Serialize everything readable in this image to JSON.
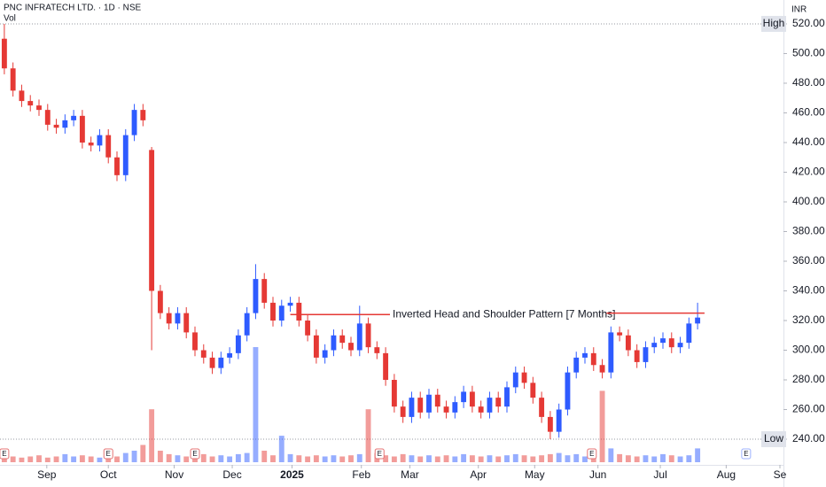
{
  "chart_data": {
    "type": "candlestick",
    "title": "PNC INFRATECH LTD. · 1D · NSE",
    "volume_label": "Vol",
    "currency": "INR",
    "up_color": "#2e5bff",
    "down_color": "#e53935",
    "xlim": [
      0,
      90
    ],
    "xticks": [
      {
        "value": 5.4,
        "label": "Sep"
      },
      {
        "value": 12.5,
        "label": "Oct"
      },
      {
        "value": 20.1,
        "label": "Nov"
      },
      {
        "value": 26.8,
        "label": "Dec"
      },
      {
        "value": 33.7,
        "label": "2025"
      },
      {
        "value": 41.7,
        "label": "Feb"
      },
      {
        "value": 47.3,
        "label": "Mar"
      },
      {
        "value": 55.2,
        "label": "Apr"
      },
      {
        "value": 61.7,
        "label": "May"
      },
      {
        "value": 69.0,
        "label": "Jun"
      },
      {
        "value": 76.2,
        "label": "Jul"
      },
      {
        "value": 83.8,
        "label": "Aug"
      },
      {
        "value": 90,
        "label": "Se"
      }
    ],
    "ylim": [
      222.7,
      536.1
    ],
    "yticks": [
      {
        "value": 240,
        "label": "240.00"
      },
      {
        "value": 260,
        "label": "260.00"
      },
      {
        "value": 280,
        "label": "280.00"
      },
      {
        "value": 300,
        "label": "300.00"
      },
      {
        "value": 320,
        "label": "320.00"
      },
      {
        "value": 340,
        "label": "340.00"
      },
      {
        "value": 360,
        "label": "360.00"
      },
      {
        "value": 380,
        "label": "380.00"
      },
      {
        "value": 400,
        "label": "400.00"
      },
      {
        "value": 420,
        "label": "420.00"
      },
      {
        "value": 440,
        "label": "440.00"
      },
      {
        "value": 460,
        "label": "460.00"
      },
      {
        "value": 480,
        "label": "480.00"
      },
      {
        "value": 500,
        "label": "500.00"
      },
      {
        "value": 520,
        "label": "520.00"
      }
    ],
    "grid": false,
    "high": {
      "label": "High",
      "value": 520
    },
    "low": {
      "label": "Low",
      "value": 240
    },
    "open": [
      510,
      490,
      475,
      468,
      465,
      462,
      452,
      450,
      455,
      458,
      440,
      438,
      445,
      430,
      418,
      445,
      462,
      435,
      340,
      325,
      318,
      325,
      312,
      300,
      295,
      288,
      295,
      298,
      310,
      325,
      348,
      332,
      320,
      330,
      332,
      320,
      310,
      295,
      300,
      310,
      305,
      300,
      318,
      302,
      298,
      280,
      262,
      255,
      268,
      258,
      270,
      262,
      258,
      265,
      272,
      262,
      258,
      268,
      262,
      275,
      285,
      278,
      268,
      255,
      245,
      260,
      285,
      295,
      298,
      290,
      285,
      312,
      310,
      300,
      292,
      302,
      305,
      308,
      302,
      305,
      318
    ],
    "high_values": [
      520,
      494,
      479,
      472,
      469,
      466,
      456,
      459,
      462,
      462,
      444,
      449,
      449,
      434,
      449,
      466,
      466,
      437,
      344,
      329,
      329,
      329,
      316,
      304,
      299,
      299,
      302,
      314,
      329,
      358,
      352,
      336,
      334,
      336,
      336,
      324,
      314,
      304,
      314,
      314,
      309,
      330,
      322,
      306,
      302,
      284,
      266,
      272,
      272,
      274,
      274,
      266,
      269,
      276,
      276,
      266,
      272,
      272,
      279,
      289,
      289,
      282,
      272,
      259,
      264,
      289,
      299,
      302,
      302,
      294,
      316,
      316,
      314,
      304,
      306,
      309,
      312,
      312,
      309,
      322,
      332
    ],
    "low_values": [
      486,
      471,
      464,
      461,
      458,
      448,
      446,
      446,
      451,
      436,
      434,
      434,
      426,
      414,
      414,
      441,
      451,
      300,
      321,
      314,
      314,
      308,
      296,
      291,
      284,
      284,
      291,
      294,
      306,
      321,
      328,
      316,
      316,
      326,
      316,
      306,
      291,
      291,
      296,
      301,
      296,
      296,
      298,
      294,
      276,
      258,
      251,
      251,
      254,
      254,
      258,
      254,
      254,
      261,
      258,
      254,
      254,
      258,
      258,
      271,
      274,
      264,
      251,
      240,
      241,
      256,
      281,
      291,
      286,
      281,
      281,
      306,
      296,
      288,
      288,
      298,
      301,
      298,
      298,
      301,
      314
    ],
    "close": [
      490,
      475,
      468,
      465,
      462,
      452,
      450,
      455,
      458,
      440,
      438,
      445,
      430,
      418,
      445,
      462,
      455,
      340,
      325,
      318,
      325,
      312,
      300,
      295,
      288,
      295,
      298,
      310,
      325,
      348,
      332,
      320,
      330,
      332,
      320,
      310,
      295,
      300,
      310,
      305,
      300,
      318,
      302,
      298,
      280,
      262,
      255,
      268,
      258,
      270,
      262,
      258,
      265,
      272,
      262,
      258,
      268,
      262,
      275,
      285,
      278,
      268,
      255,
      245,
      260,
      285,
      295,
      298,
      290,
      285,
      312,
      310,
      300,
      292,
      302,
      305,
      308,
      302,
      305,
      318,
      322
    ],
    "volume": [
      6,
      5,
      4,
      5,
      6,
      4,
      5,
      7,
      5,
      6,
      5,
      4,
      6,
      5,
      8,
      10,
      15,
      46,
      10,
      7,
      6,
      5,
      6,
      7,
      5,
      6,
      5,
      7,
      8,
      100,
      10,
      6,
      23,
      7,
      6,
      5,
      6,
      5,
      6,
      5,
      6,
      7,
      46,
      8,
      6,
      5,
      7,
      6,
      5,
      6,
      5,
      6,
      5,
      7,
      6,
      5,
      6,
      5,
      6,
      7,
      6,
      5,
      6,
      7,
      8,
      6,
      7,
      5,
      6,
      62,
      12,
      7,
      6,
      5,
      6,
      5,
      7,
      6,
      5,
      6,
      12
    ],
    "vlim": [
      0,
      100
    ],
    "annotations": [
      {
        "text": "Inverted Head and Shoulder Pattern [7 Months]",
        "value": 324,
        "x": [
          33.5,
          45
        ],
        "color": "#e53935"
      },
      {
        "value": 325,
        "x": [
          70,
          81.3
        ],
        "color": "#e53935"
      }
    ],
    "events": [
      {
        "x": 0.5,
        "label": "E"
      },
      {
        "x": 12.5,
        "label": "E"
      },
      {
        "x": 22.5,
        "label": "E"
      },
      {
        "x": 43.8,
        "label": "E"
      },
      {
        "x": 68.3,
        "label": "E"
      },
      {
        "x": 86.1,
        "label": "E"
      }
    ]
  }
}
